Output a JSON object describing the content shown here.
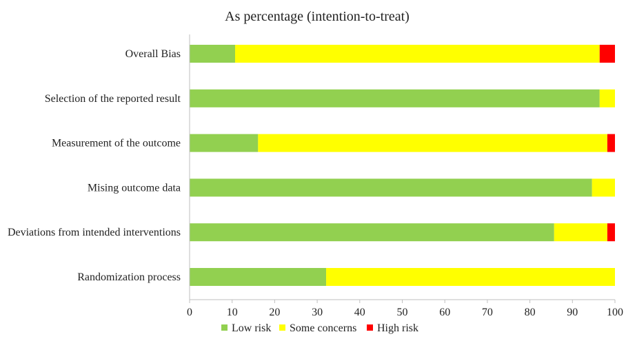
{
  "chart_data": {
    "type": "bar",
    "orientation": "horizontal",
    "stacked": true,
    "title": "As percentage (intention-to-treat)",
    "xlabel": "",
    "ylabel": "",
    "xlim": [
      0,
      100
    ],
    "x_ticks": [
      0,
      10,
      20,
      30,
      40,
      50,
      60,
      70,
      80,
      90,
      100
    ],
    "grid": false,
    "legend_position": "bottom",
    "categories": [
      "Overall Bias",
      "Selection of the reported result",
      "Measurement of the outcome",
      "Mising outcome data",
      "Deviations from intended interventions",
      "Randomization process"
    ],
    "series": [
      {
        "name": "Low risk",
        "color": "#92d050",
        "values": [
          10.7,
          96.4,
          16.1,
          94.6,
          85.7,
          32.1
        ]
      },
      {
        "name": "Some concerns",
        "color": "#ffff00",
        "values": [
          85.7,
          3.6,
          82.1,
          5.4,
          12.5,
          67.9
        ]
      },
      {
        "name": "High risk",
        "color": "#ff0000",
        "values": [
          3.6,
          0,
          1.8,
          0,
          1.8,
          0
        ]
      }
    ]
  }
}
